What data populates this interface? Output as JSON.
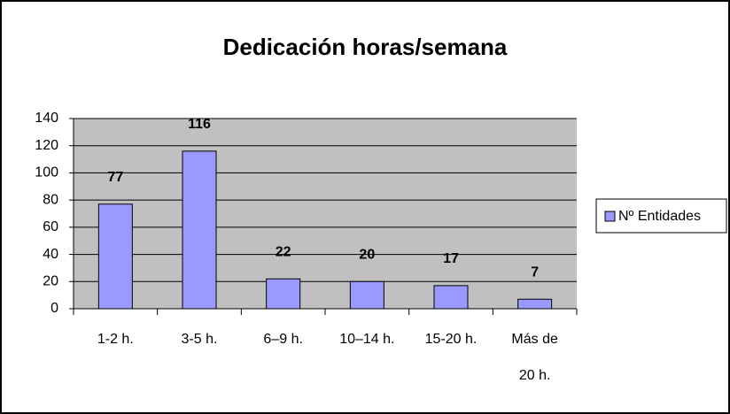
{
  "chart_data": {
    "type": "bar",
    "title": "Dedicación horas/semana",
    "categories": [
      "1-2  h.",
      "3-5 h.",
      "6–9 h.",
      "10–14 h.",
      "15-20 h.",
      "Más de 20 h."
    ],
    "series": [
      {
        "name": "Nº Entidades",
        "color": "#9999ff",
        "values": [
          77,
          116,
          22,
          20,
          17,
          7
        ]
      }
    ],
    "ylim": [
      0,
      140
    ],
    "yticks": [
      0,
      20,
      40,
      60,
      80,
      100,
      120,
      140
    ],
    "grid": true,
    "legend": "right"
  }
}
